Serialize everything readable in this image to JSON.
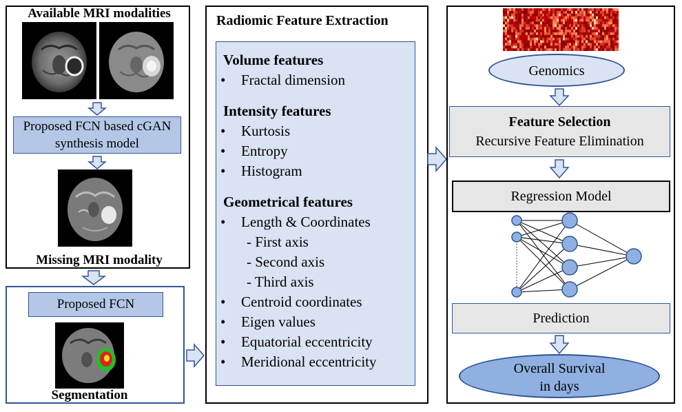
{
  "left_panel": {
    "title": "Available MRI modalities",
    "synthesis_model_label": "Proposed FCN based cGAN synthesis model",
    "missing_label": "Missing MRI modality"
  },
  "segmentation_panel": {
    "fcn_label": "Proposed FCN",
    "caption": "Segmentation"
  },
  "middle_panel": {
    "title": "Radiomic Feature Extraction",
    "sections": [
      {
        "heading": "Volume features",
        "items": [
          {
            "text": "Fractal dimension",
            "bullet": true
          }
        ]
      },
      {
        "heading": "Intensity features",
        "items": [
          {
            "text": "Kurtosis",
            "bullet": true
          },
          {
            "text": "Entropy",
            "bullet": true
          },
          {
            "text": "Histogram",
            "bullet": true
          }
        ]
      },
      {
        "heading": "Geometrical features",
        "items": [
          {
            "text": "Length & Coordinates",
            "bullet": true
          },
          {
            "text": "- First axis",
            "bullet": false
          },
          {
            "text": "- Second axis",
            "bullet": false
          },
          {
            "text": "- Third axis",
            "bullet": false
          },
          {
            "text": "Centroid coordinates",
            "bullet": true
          },
          {
            "text": "Eigen values",
            "bullet": true
          },
          {
            "text": "Equatorial eccentricity",
            "bullet": true
          },
          {
            "text": "Meridional eccentricity",
            "bullet": true
          }
        ]
      }
    ]
  },
  "right_panel": {
    "genomics_label": "Genomics",
    "feature_selection_title": "Feature Selection",
    "feature_selection_method": "Recursive Feature Elimination",
    "regression_label": "Regression Model",
    "prediction_label": "Prediction",
    "survival_line1": "Overall Survival",
    "survival_line2": "in days"
  },
  "colors": {
    "light_blue": "#b4c7e7",
    "border_blue": "#2f5597",
    "arrow_fill": "#dae3f3",
    "node_fill": "#8fb0e0",
    "heatmap_red": "#c00000"
  },
  "icons": {
    "flow_arrow": "down-arrow-icon",
    "right_arrow": "right-arrow-icon",
    "neural_network": "neural-network-icon",
    "mri_scan": "brain-mri-image",
    "heatmap": "genomics-heatmap"
  }
}
